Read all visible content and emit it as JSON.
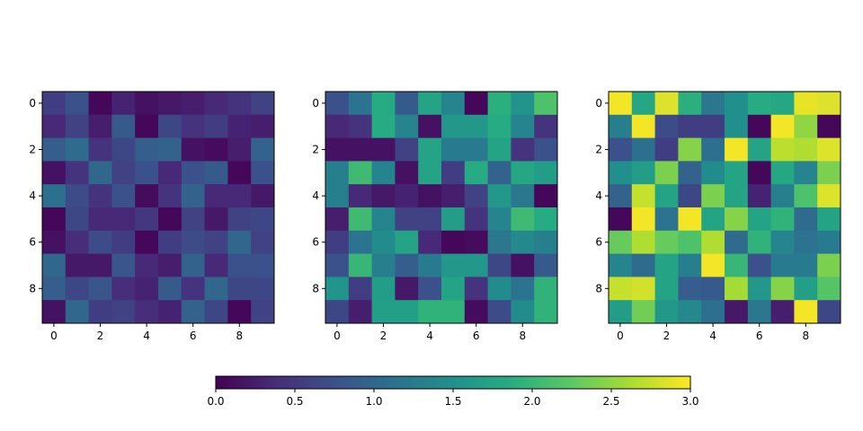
{
  "chart_data": {
    "type": "heatmap",
    "colormap": "viridis",
    "clim": [
      0.0,
      3.0
    ],
    "colorbar": {
      "orientation": "horizontal",
      "ticks": [
        0.0,
        0.5,
        1.0,
        1.5,
        2.0,
        2.5,
        3.0
      ],
      "tick_labels": [
        "0.0",
        "0.5",
        "1.0",
        "1.5",
        "2.0",
        "2.5",
        "3.0"
      ]
    },
    "x_ticks": [
      0,
      2,
      4,
      6,
      8
    ],
    "y_ticks": [
      0,
      2,
      4,
      6,
      8
    ],
    "x_tick_labels": [
      "0",
      "2",
      "4",
      "6",
      "8"
    ],
    "y_tick_labels": [
      "0",
      "2",
      "4",
      "6",
      "8"
    ],
    "panels": [
      {
        "values": [
          [
            0.55,
            0.75,
            0.05,
            0.3,
            0.15,
            0.2,
            0.25,
            0.35,
            0.45,
            0.6
          ],
          [
            0.35,
            0.6,
            0.25,
            0.85,
            0.05,
            0.65,
            0.45,
            0.55,
            0.3,
            0.25
          ],
          [
            0.9,
            1.05,
            0.45,
            0.65,
            0.9,
            0.95,
            0.15,
            0.1,
            0.25,
            0.95
          ],
          [
            0.15,
            0.45,
            1.0,
            0.6,
            0.75,
            0.35,
            0.75,
            0.85,
            0.05,
            0.75
          ],
          [
            1.1,
            0.7,
            0.45,
            0.75,
            0.1,
            0.45,
            0.95,
            0.35,
            0.35,
            0.2
          ],
          [
            0.05,
            0.65,
            0.35,
            0.35,
            0.5,
            0.05,
            0.6,
            0.2,
            0.6,
            0.65
          ],
          [
            0.15,
            0.4,
            0.7,
            0.55,
            0.05,
            0.55,
            0.7,
            0.6,
            1.0,
            0.6
          ],
          [
            1.0,
            0.2,
            0.2,
            0.8,
            0.35,
            0.25,
            0.95,
            0.35,
            0.75,
            0.75
          ],
          [
            0.9,
            0.65,
            0.8,
            0.4,
            0.3,
            0.85,
            0.45,
            1.0,
            0.65,
            0.65
          ],
          [
            0.15,
            1.0,
            0.55,
            0.6,
            0.4,
            0.3,
            0.95,
            0.65,
            0.05,
            0.6
          ]
        ]
      },
      {
        "values": [
          [
            0.75,
            1.15,
            1.85,
            0.85,
            1.75,
            1.35,
            0.05,
            1.9,
            1.55,
            2.15
          ],
          [
            0.35,
            0.45,
            1.85,
            1.35,
            0.15,
            1.6,
            1.6,
            1.85,
            1.35,
            0.45
          ],
          [
            0.15,
            0.15,
            0.15,
            0.6,
            1.75,
            1.25,
            1.25,
            1.75,
            0.45,
            0.75
          ],
          [
            1.3,
            2.05,
            1.35,
            0.15,
            1.75,
            0.55,
            1.85,
            0.95,
            1.8,
            1.65
          ],
          [
            1.3,
            0.35,
            0.2,
            0.3,
            0.15,
            0.25,
            0.6,
            1.6,
            1.2,
            0.05
          ],
          [
            0.25,
            2.05,
            1.35,
            0.6,
            0.6,
            1.65,
            0.45,
            1.35,
            2.05,
            1.85
          ],
          [
            0.55,
            1.15,
            1.45,
            1.75,
            0.35,
            0.05,
            0.1,
            1.2,
            1.4,
            1.3
          ],
          [
            0.75,
            2.0,
            1.3,
            0.9,
            1.25,
            1.6,
            1.6,
            0.65,
            0.15,
            0.85
          ],
          [
            1.55,
            0.55,
            1.65,
            0.2,
            0.75,
            1.75,
            0.45,
            1.45,
            1.15,
            1.95
          ],
          [
            0.65,
            0.25,
            1.7,
            1.7,
            1.95,
            1.95,
            0.1,
            0.7,
            1.45,
            1.95
          ]
        ]
      },
      {
        "values": [
          [
            2.95,
            1.8,
            2.85,
            1.9,
            1.2,
            1.5,
            1.85,
            1.8,
            2.9,
            2.85
          ],
          [
            1.3,
            2.95,
            0.7,
            0.55,
            0.55,
            1.5,
            0.05,
            2.95,
            2.5,
            0.05
          ],
          [
            0.75,
            1.1,
            0.55,
            2.45,
            1.1,
            2.95,
            1.75,
            2.7,
            2.65,
            2.85
          ],
          [
            1.5,
            1.65,
            2.4,
            0.95,
            1.45,
            1.75,
            0.05,
            1.8,
            1.35,
            2.4
          ],
          [
            0.95,
            2.75,
            1.75,
            0.65,
            2.4,
            1.75,
            0.3,
            1.3,
            2.15,
            2.85
          ],
          [
            0.05,
            2.95,
            1.15,
            2.95,
            1.75,
            2.45,
            1.75,
            1.95,
            1.05,
            1.75
          ],
          [
            2.3,
            2.65,
            2.3,
            2.15,
            2.65,
            1.05,
            1.95,
            1.35,
            1.15,
            1.25
          ],
          [
            1.35,
            1.05,
            1.75,
            1.3,
            2.95,
            2.0,
            0.75,
            1.25,
            1.25,
            2.4
          ],
          [
            2.75,
            2.8,
            1.75,
            0.9,
            0.85,
            2.6,
            1.6,
            2.45,
            1.7,
            2.2
          ],
          [
            1.65,
            2.35,
            1.6,
            1.4,
            1.1,
            0.2,
            1.2,
            0.25,
            2.95,
            0.65
          ]
        ]
      }
    ]
  }
}
